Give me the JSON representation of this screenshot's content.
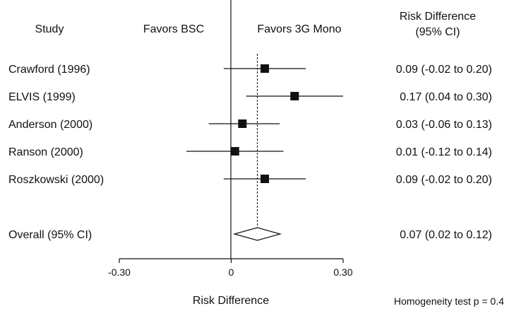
{
  "header": {
    "study": "Study",
    "favors_left": "Favors BSC",
    "favors_right": "Favors 3G Mono",
    "effect_title_line1": "Risk Difference",
    "effect_title_line2": "(95% CI)"
  },
  "footer": {
    "homogeneity": "Homogeneity test p = 0.4"
  },
  "chart_data": {
    "type": "forest",
    "xlabel": "Risk Difference",
    "xlim": [
      -0.3,
      0.3
    ],
    "x_ticks": [
      {
        "value": -0.3,
        "label": "-0.30"
      },
      {
        "value": 0,
        "label": "0"
      },
      {
        "value": 0.3,
        "label": "0.30"
      }
    ],
    "reference_line": 0,
    "pooled_reference": 0.07,
    "studies": [
      {
        "name": "Crawford (1996)",
        "estimate": 0.09,
        "lower": -0.02,
        "upper": 0.2,
        "label": "0.09 (-0.02 to 0.20)"
      },
      {
        "name": "ELVIS (1999)",
        "estimate": 0.17,
        "lower": 0.04,
        "upper": 0.3,
        "label": "0.17 (0.04 to 0.30)"
      },
      {
        "name": "Anderson (2000)",
        "estimate": 0.03,
        "lower": -0.06,
        "upper": 0.13,
        "label": "0.03 (-0.06 to 0.13)"
      },
      {
        "name": "Ranson (2000)",
        "estimate": 0.01,
        "lower": -0.12,
        "upper": 0.14,
        "label": "0.01 (-0.12 to 0.14)"
      },
      {
        "name": "Roszkowski (2000)",
        "estimate": 0.09,
        "lower": -0.02,
        "upper": 0.2,
        "label": "0.09 (-0.02 to 0.20)"
      }
    ],
    "overall": {
      "name": "Overall (95% CI)",
      "estimate": 0.07,
      "lower": 0.02,
      "upper": 0.12,
      "label": "0.07 (0.02 to 0.12)"
    }
  }
}
